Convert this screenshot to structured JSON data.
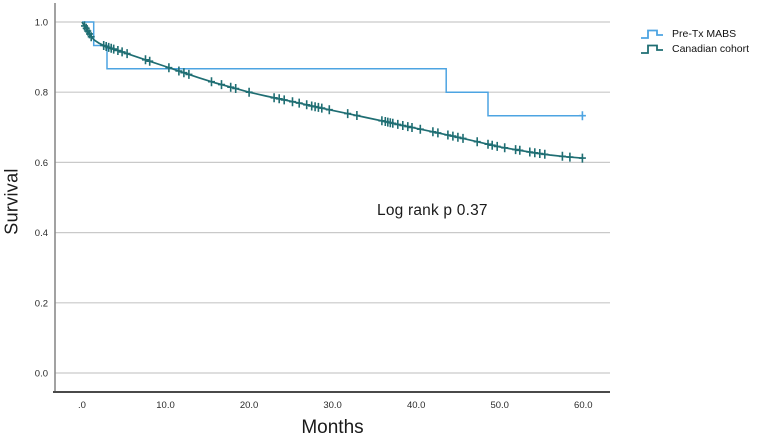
{
  "chart_data": {
    "type": "line",
    "subtype": "kaplan-meier-survival",
    "xlabel": "Months",
    "ylabel": "Survival",
    "annotation": "Log rank p 0.37",
    "xlim": [
      -3.23,
      63.2
    ],
    "ylim": [
      -0.054,
      1.054
    ],
    "x_ticks": [
      0,
      10,
      20,
      30,
      40,
      50,
      60
    ],
    "x_tick_labels": [
      ".0",
      "10.0",
      "20.0",
      "30.0",
      "40.0",
      "50.0",
      "60.0"
    ],
    "y_ticks": [
      0.0,
      0.2,
      0.4,
      0.6,
      0.8,
      1.0
    ],
    "y_tick_labels": [
      "0.0",
      "0.2",
      "0.4",
      "0.6",
      "0.8",
      "1.0"
    ],
    "grid": "horizontal",
    "legend_position": "top-right",
    "colors": {
      "grid": "#c9c9c9",
      "y_axis": "#8a8a8a",
      "x_axis": "#4a4a4a",
      "tick_text": "#2b2b2b",
      "background": "#ffffff"
    },
    "series": [
      {
        "id": "pre-tx-mabs",
        "name": "Pre-Tx MABS",
        "color": "#4da4e2",
        "width": 1.5,
        "style": "step",
        "points": [
          [
            0,
            1.0
          ],
          [
            1.4,
            1.0
          ],
          [
            1.4,
            0.933
          ],
          [
            3.0,
            0.933
          ],
          [
            3.0,
            0.867
          ],
          [
            43.6,
            0.867
          ],
          [
            43.6,
            0.8
          ],
          [
            48.6,
            0.8
          ],
          [
            48.6,
            0.733
          ],
          [
            59.9,
            0.733
          ]
        ],
        "censor_x": [
          59.9
        ]
      },
      {
        "id": "canadian-cohort",
        "name": "Canadian cohort",
        "color": "#1f6e73",
        "width": 1.7,
        "style": "line",
        "points": [
          [
            0,
            1.0
          ],
          [
            0.2,
            0.992
          ],
          [
            0.5,
            0.982
          ],
          [
            0.8,
            0.97
          ],
          [
            1.1,
            0.958
          ],
          [
            1.5,
            0.948
          ],
          [
            2.0,
            0.94
          ],
          [
            2.5,
            0.934
          ],
          [
            3.0,
            0.929
          ],
          [
            4.0,
            0.921
          ],
          [
            5.0,
            0.913
          ],
          [
            6.0,
            0.905
          ],
          [
            8.0,
            0.889
          ],
          [
            10.0,
            0.873
          ],
          [
            12.0,
            0.857
          ],
          [
            14.0,
            0.841
          ],
          [
            16.0,
            0.826
          ],
          [
            18.0,
            0.813
          ],
          [
            20.0,
            0.8
          ],
          [
            22.0,
            0.789
          ],
          [
            24.0,
            0.779
          ],
          [
            26.0,
            0.769
          ],
          [
            28.0,
            0.758
          ],
          [
            30.0,
            0.748
          ],
          [
            32.0,
            0.738
          ],
          [
            34.0,
            0.728
          ],
          [
            36.0,
            0.718
          ],
          [
            38.0,
            0.707
          ],
          [
            40.0,
            0.697
          ],
          [
            42.0,
            0.687
          ],
          [
            44.0,
            0.677
          ],
          [
            46.0,
            0.666
          ],
          [
            48.0,
            0.655
          ],
          [
            50.0,
            0.644
          ],
          [
            52.0,
            0.636
          ],
          [
            54.0,
            0.628
          ],
          [
            56.0,
            0.621
          ],
          [
            58.0,
            0.616
          ],
          [
            60.0,
            0.612
          ]
        ],
        "censor_x": [
          0.3,
          0.5,
          0.7,
          0.9,
          1.1,
          2.6,
          2.9,
          3.2,
          3.5,
          3.8,
          4.3,
          4.8,
          5.4,
          7.6,
          8.1,
          10.4,
          11.6,
          12.2,
          12.8,
          15.5,
          16.7,
          17.8,
          18.4,
          20.0,
          23.0,
          23.6,
          24.2,
          25.2,
          26.0,
          26.9,
          27.5,
          27.9,
          28.3,
          28.7,
          29.6,
          31.8,
          32.9,
          35.9,
          36.3,
          36.6,
          36.9,
          37.2,
          37.8,
          38.4,
          39.0,
          39.5,
          40.5,
          42.0,
          42.6,
          43.8,
          44.4,
          45.0,
          45.6,
          47.3,
          48.6,
          49.1,
          49.7,
          50.6,
          51.9,
          52.4,
          53.6,
          54.2,
          54.8,
          55.4,
          57.5,
          58.4,
          59.9
        ]
      }
    ]
  }
}
